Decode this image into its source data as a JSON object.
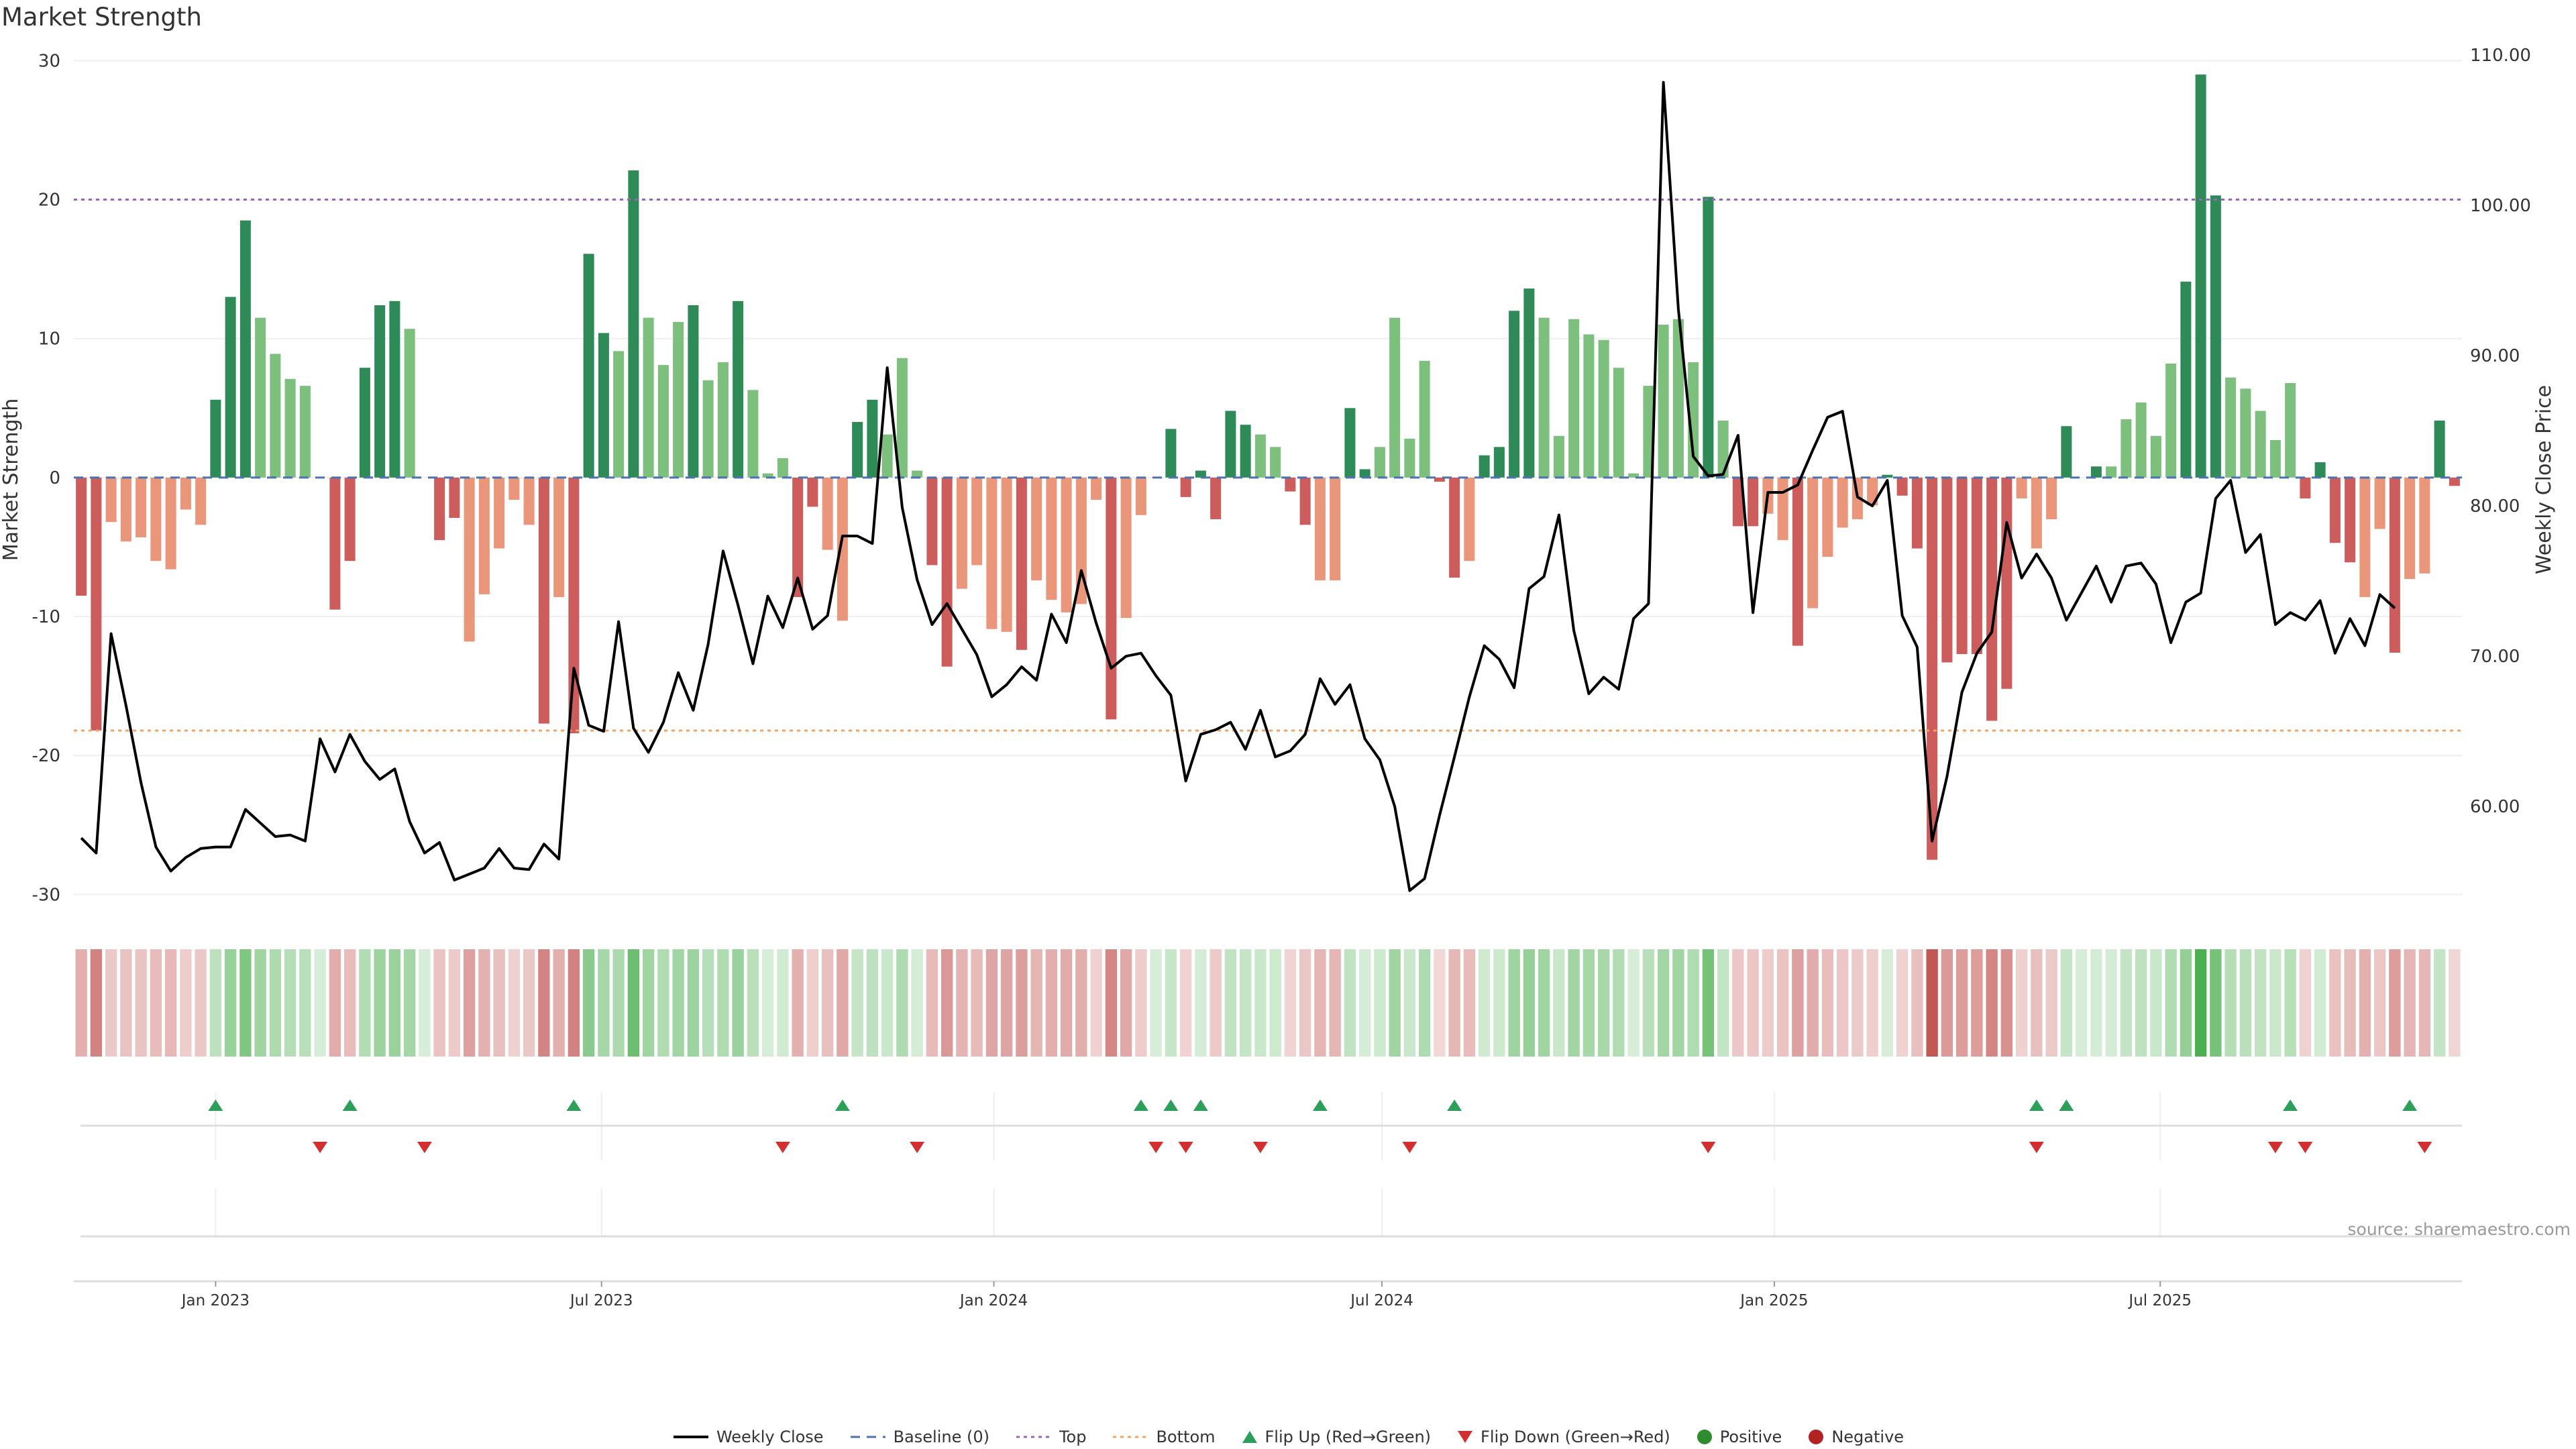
{
  "title": "Market Strength",
  "source": "source: sharemaestro.com",
  "colors": {
    "pos_strong": "#2e8b57",
    "pos_light": "#7dbf7d",
    "neg_strong": "#cd5c5c",
    "neg_light": "#e9967a",
    "line": "#000000",
    "top": "#9467bd",
    "bottom": "#f4a460",
    "baseline": "#4c72b0",
    "flip_up": "#2ca05a",
    "flip_down": "#d32f2f",
    "heat_pos": "#4caf50",
    "heat_neg": "#c0504d"
  },
  "chart_data": {
    "type": "bar+line",
    "left_axis": {
      "label": "Market Strength",
      "ticks": [
        30,
        20,
        10,
        0,
        -10,
        -20,
        -30
      ],
      "range": [
        -30.8,
        30.5
      ]
    },
    "right_axis": {
      "label": "Weekly Close Price",
      "ticks": [
        "110.00",
        "100.00",
        "90.00",
        "80.00",
        "70.00",
        "60.00"
      ],
      "range": [
        53.4,
        110.1
      ]
    },
    "x_ticks": [
      {
        "label": "Jan 2023",
        "date": "2023-01-01"
      },
      {
        "label": "Jul 2023",
        "date": "2023-07-01"
      },
      {
        "label": "Jan 2024",
        "date": "2024-01-01"
      },
      {
        "label": "Jul 2024",
        "date": "2024-07-01"
      },
      {
        "label": "Jan 2025",
        "date": "2025-01-01"
      },
      {
        "label": "Jul 2025",
        "date": "2025-07-01"
      }
    ],
    "first_week": "2022-10-30",
    "top_line": 20,
    "bottom_line": -18.2,
    "strength": [
      -8.5,
      -18.2,
      -3.2,
      -4.6,
      -4.3,
      -6,
      -6.6,
      -2.3,
      -3.4,
      5.6,
      13,
      18.5,
      11.5,
      8.9,
      7.1,
      6.6,
      0,
      -9.5,
      -6,
      7.9,
      12.4,
      12.7,
      10.7,
      0,
      -4.5,
      -2.9,
      -11.8,
      -8.4,
      -5.1,
      -1.6,
      -3.4,
      -17.7,
      -8.6,
      -18.4,
      16.1,
      10.4,
      9.1,
      22.1,
      11.5,
      8.1,
      11.2,
      12.4,
      7,
      8.3,
      12.7,
      6.3,
      0.3,
      1.4,
      -8.6,
      -2.1,
      -5.2,
      -10.3,
      4,
      5.6,
      3.1,
      8.6,
      0.5,
      -6.3,
      -13.6,
      -8,
      -6.3,
      -10.9,
      -11.1,
      -12.4,
      -7.4,
      -8.8,
      -9.7,
      -9.1,
      -1.6,
      -17.4,
      -10.1,
      -2.7,
      0,
      3.5,
      -1.4,
      0.5,
      -3,
      4.8,
      3.8,
      3.1,
      2.2,
      -1,
      -3.4,
      -7.4,
      -7.4,
      5,
      0.6,
      2.2,
      11.5,
      2.8,
      8.4,
      -0.3,
      -7.2,
      -6,
      1.6,
      2.2,
      12,
      13.6,
      11.5,
      3,
      11.4,
      10.3,
      9.9,
      7.9,
      0.3,
      6.6,
      11,
      11.4,
      8.3,
      20.2,
      4.1,
      -3.5,
      -3.5,
      -2.6,
      -4.5,
      -12.1,
      -9.4,
      -5.7,
      -3.6,
      -3,
      -2,
      0.2,
      -1.3,
      -5.1,
      -27.5,
      -13.3,
      -12.7,
      -12.7,
      -17.5,
      -15.2,
      -1.5,
      -5.1,
      -3,
      3.7,
      0,
      0.8,
      0.8,
      4.2,
      5.4,
      3,
      8.2,
      14.1,
      29,
      20.3,
      7.2,
      6.4,
      4.8,
      2.7,
      6.8,
      -1.5,
      1.1,
      -4.7,
      -6.1,
      -8.6,
      -3.7,
      -12.6,
      -7.3,
      -6.9,
      4.1,
      -0.6
    ],
    "weekly_close": [
      57.9,
      56.9,
      71.5,
      66.7,
      61.6,
      57.3,
      55.7,
      56.6,
      57.2,
      57.3,
      57.3,
      59.8,
      58.9,
      58,
      58.1,
      57.7,
      64.5,
      62.3,
      64.8,
      63,
      61.8,
      62.5,
      59,
      56.9,
      57.6,
      55.1,
      55.5,
      55.9,
      57.2,
      55.9,
      55.8,
      57.5,
      56.5,
      69.2,
      65.4,
      65,
      72.3,
      65.2,
      63.6,
      65.6,
      68.9,
      66.4,
      70.8,
      77,
      73.4,
      69.5,
      74,
      71.9,
      75.2,
      71.8,
      72.7,
      78,
      78,
      77.5,
      89.2,
      79.9,
      75.1,
      72.1,
      73.5,
      71.8,
      70.1,
      67.3,
      68.1,
      69.3,
      68.4,
      72.8,
      70.9,
      75.7,
      72.2,
      69.2,
      70,
      70.2,
      68.7,
      67.4,
      61.7,
      64.8,
      65.1,
      65.6,
      63.8,
      66.4,
      63.3,
      63.7,
      64.8,
      68.5,
      66.8,
      68.1,
      64.5,
      63.1,
      60,
      54.4,
      55.2,
      59.4,
      63.3,
      67.3,
      70.7,
      69.8,
      67.9,
      74.5,
      75.3,
      79.4,
      71.7,
      67.5,
      68.6,
      67.8,
      72.5,
      73.5,
      108.2,
      93.1,
      83.3,
      82,
      82.1,
      84.7,
      72.9,
      80.9,
      80.9,
      81.4,
      83.7,
      85.9,
      86.3,
      80.6,
      80,
      81.7,
      72.7,
      70.6,
      57.7,
      62,
      67.6,
      70.2,
      71.6,
      78.9,
      75.2,
      76.8,
      75.2,
      72.4,
      74.2,
      76,
      73.6,
      76,
      76.2,
      74.8,
      70.9,
      73.6,
      74.2,
      80.5,
      81.7,
      76.9,
      78.1,
      72.1,
      72.9,
      72.4,
      73.7,
      70.2,
      72.5,
      70.7,
      74.1,
      73.2
    ]
  },
  "flips_up_weeks": [
    9,
    18,
    33,
    51,
    71,
    73,
    75,
    83,
    92,
    131,
    133,
    148,
    156
  ],
  "flips_down_weeks": [
    16,
    23,
    47,
    56,
    72,
    74,
    79,
    89,
    109,
    131,
    147,
    149,
    157
  ],
  "legend": [
    {
      "key": "line",
      "label": "Weekly Close"
    },
    {
      "key": "baseline",
      "label": "Baseline (0)"
    },
    {
      "key": "top",
      "label": "Top"
    },
    {
      "key": "bottom",
      "label": "Bottom"
    },
    {
      "key": "flip_up",
      "label": "Flip Up (Red→Green)"
    },
    {
      "key": "flip_down",
      "label": "Flip Down (Green→Red)"
    },
    {
      "key": "positive",
      "label": "Positive"
    },
    {
      "key": "negative",
      "label": "Negative"
    }
  ]
}
